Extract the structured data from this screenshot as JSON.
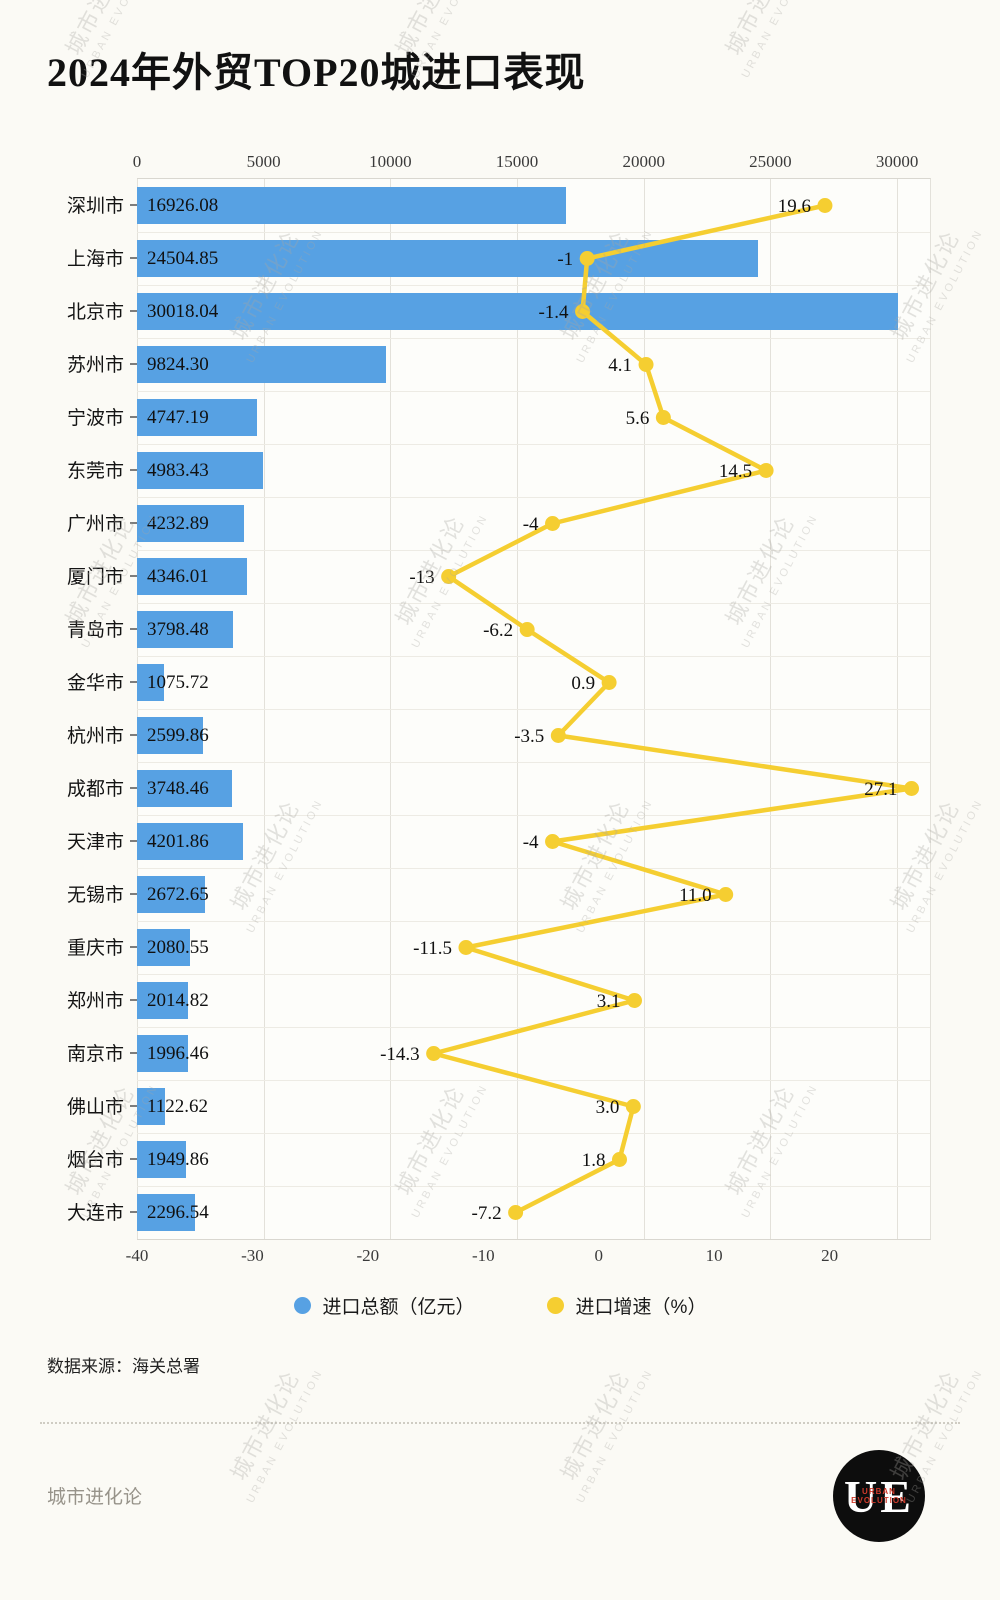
{
  "chart_data": {
    "type": "bar",
    "orientation": "horizontal",
    "title": "2024年外贸TOP20城进口表现",
    "categories": [
      "深圳市",
      "上海市",
      "北京市",
      "苏州市",
      "宁波市",
      "东莞市",
      "广州市",
      "厦门市",
      "青岛市",
      "金华市",
      "杭州市",
      "成都市",
      "天津市",
      "无锡市",
      "重庆市",
      "郑州市",
      "南京市",
      "佛山市",
      "烟台市",
      "大连市"
    ],
    "series": [
      {
        "name": "进口总额（亿元）",
        "type": "bar",
        "color": "#57A1E3",
        "values": [
          16926.08,
          24504.85,
          30018.04,
          9824.3,
          4747.19,
          4983.43,
          4232.89,
          4346.01,
          3798.48,
          1075.72,
          2599.86,
          3748.46,
          4201.86,
          2672.65,
          2080.55,
          2014.82,
          1996.46,
          1122.62,
          1949.86,
          2296.54
        ]
      },
      {
        "name": "进口增速（%）",
        "type": "line",
        "color": "#F5CE31",
        "values": [
          19.6,
          -1,
          -1.4,
          4.1,
          5.6,
          14.5,
          -4,
          -13,
          -6.2,
          0.9,
          -3.5,
          27.1,
          -4,
          11.0,
          -11.5,
          3.1,
          -14.3,
          3.0,
          1.8,
          -7.2
        ]
      }
    ],
    "value_labels": [
      "16926.08",
      "24504.85",
      "30018.04",
      "9824.30",
      "4747.19",
      "4983.43",
      "4232.89",
      "4346.01",
      "3798.48",
      "1075.72",
      "2599.86",
      "3748.46",
      "4201.86",
      "2672.65",
      "2080.55",
      "2014.82",
      "1996.46",
      "1122.62",
      "1949.86",
      "2296.54"
    ],
    "growth_labels": [
      "19.6",
      "-1",
      "-1.4",
      "4.1",
      "5.6",
      "14.5",
      "-4",
      "-13",
      "-6.2",
      "0.9",
      "-3.5",
      "27.1",
      "-4",
      "11.0",
      "-11.5",
      "3.1",
      "-14.3",
      "3.0",
      "1.8",
      "-7.2"
    ],
    "top_axis": {
      "ticks": [
        0,
        5000,
        10000,
        15000,
        20000,
        25000,
        30000
      ],
      "scale_max": 31300
    },
    "bottom_axis": {
      "ticks": [
        -40,
        -30,
        -20,
        -10,
        0,
        10,
        20
      ],
      "scale_min": -40,
      "scale_max": 28.7
    },
    "grid": true,
    "legend_position": "bottom"
  },
  "source": {
    "text": "数据来源：海关总署"
  },
  "footer": {
    "brand": "城市进化论"
  },
  "logo": {
    "text": "UE",
    "subtext": "URBAN EVOLUTION"
  },
  "watermark": {
    "line1": "城市进化论",
    "line2": "URBAN EVOLUTION"
  }
}
